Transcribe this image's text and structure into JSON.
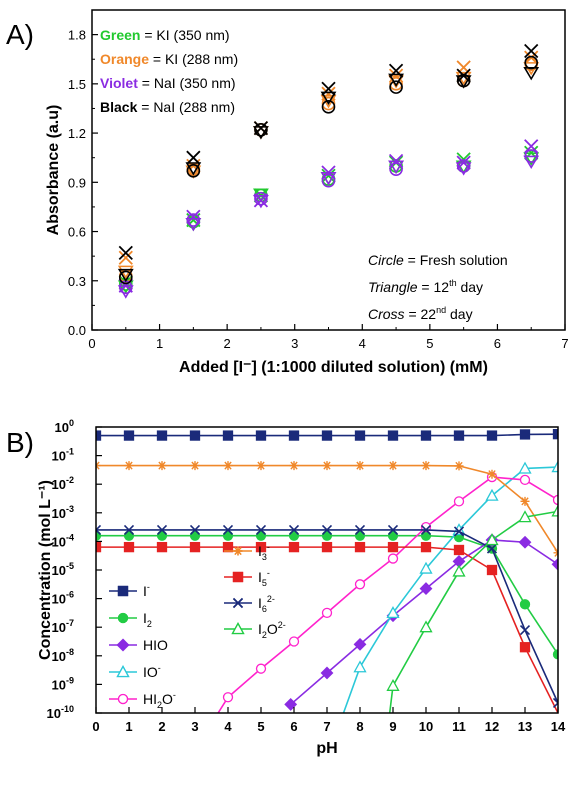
{
  "chart_data": [
    {
      "panel": "A)",
      "type": "scatter",
      "xlabel": "Added [I⁻] (1:1000 diluted solution) (mM)",
      "ylabel": "Absorbance (a.u)",
      "xlim": [
        0,
        7
      ],
      "ylim": [
        0,
        1.95
      ],
      "xticks": [
        "0",
        "1",
        "2",
        "3",
        "4",
        "5",
        "6",
        "7"
      ],
      "yticks": [
        "0.0",
        "0.3",
        "0.6",
        "0.9",
        "1.2",
        "1.5",
        "1.8"
      ],
      "color_legend": [
        {
          "color_word": "Green",
          "text": "= KI (350 nm)",
          "color": "#22c92f"
        },
        {
          "color_word": "Orange",
          "text": "= KI (288 nm)",
          "color": "#f0882a"
        },
        {
          "color_word": "Violet",
          "text": "= NaI (350 nm)",
          "color": "#8a2be2"
        },
        {
          "color_word": "Black",
          "text": "= NaI (288 nm)",
          "color": "#000000"
        }
      ],
      "marker_legend": [
        {
          "shape": "Circle",
          "text": "= Fresh solution"
        },
        {
          "shape": "Triangle",
          "text": "= 12",
          "sup": "th",
          "tail": "day"
        },
        {
          "shape": "Cross",
          "text": "= 22",
          "sup": "nd",
          "tail": "day"
        }
      ],
      "x": [
        0.5,
        1.5,
        2.5,
        3.5,
        4.5,
        5.5,
        6.5
      ],
      "series": [
        {
          "color": "#22c92f",
          "circle": [
            0.28,
            0.66,
            0.82,
            0.92,
            1.0,
            1.0,
            1.06
          ],
          "triangle": [
            0.27,
            0.65,
            0.83,
            0.93,
            1.0,
            1.0,
            1.05
          ],
          "cross": [
            0.29,
            0.67,
            0.82,
            0.94,
            1.02,
            1.04,
            1.08
          ]
        },
        {
          "color": "#f0882a",
          "circle": [
            0.33,
            0.98,
            1.22,
            1.38,
            1.5,
            1.52,
            1.62
          ],
          "triangle": [
            0.36,
            0.97,
            1.21,
            1.4,
            1.52,
            1.54,
            1.6
          ],
          "cross": [
            0.44,
            1.0,
            1.23,
            1.44,
            1.55,
            1.6,
            1.66
          ]
        },
        {
          "color": "#8a2be2",
          "circle": [
            0.26,
            0.67,
            0.8,
            0.91,
            0.98,
            1.0,
            1.06
          ],
          "triangle": [
            0.24,
            0.65,
            0.79,
            0.93,
            1.0,
            0.99,
            1.03
          ],
          "cross": [
            0.27,
            0.69,
            0.79,
            0.96,
            1.03,
            1.02,
            1.12
          ]
        },
        {
          "color": "#000000",
          "circle": [
            0.32,
            0.97,
            1.22,
            1.36,
            1.48,
            1.52,
            1.63
          ],
          "triangle": [
            0.34,
            0.99,
            1.21,
            1.42,
            1.53,
            1.52,
            1.57
          ],
          "cross": [
            0.47,
            1.05,
            1.23,
            1.47,
            1.58,
            1.55,
            1.7
          ]
        }
      ]
    },
    {
      "panel": "B)",
      "type": "line",
      "xlabel": "pH",
      "ylabel": "Concentration (mol L⁻¹)",
      "xlim": [
        0,
        14
      ],
      "ylim_log10": [
        -10,
        0
      ],
      "xticks": [
        "0",
        "1",
        "2",
        "3",
        "4",
        "5",
        "6",
        "7",
        "8",
        "9",
        "10",
        "11",
        "12",
        "13",
        "14"
      ],
      "ytick_exps": [
        "0",
        "-1",
        "-2",
        "-3",
        "-4",
        "-5",
        "-6",
        "-7",
        "-8",
        "-9",
        "-10"
      ],
      "series": [
        {
          "label": "I",
          "sup": "-",
          "sub": "",
          "color": "#1a2a7a",
          "marker": "square",
          "filled": true,
          "x": [
            0,
            1,
            2,
            3,
            4,
            5,
            6,
            7,
            8,
            9,
            10,
            11,
            12,
            13,
            14
          ],
          "log10y": [
            -0.3,
            -0.3,
            -0.3,
            -0.3,
            -0.3,
            -0.3,
            -0.3,
            -0.3,
            -0.3,
            -0.3,
            -0.3,
            -0.3,
            -0.3,
            -0.26,
            -0.25
          ]
        },
        {
          "label": "I",
          "sup": "",
          "sub": "2",
          "color": "#22cc44",
          "marker": "circle",
          "filled": true,
          "x": [
            0,
            1,
            2,
            3,
            4,
            5,
            6,
            7,
            8,
            9,
            10,
            11,
            12,
            13,
            14
          ],
          "log10y": [
            -3.8,
            -3.8,
            -3.8,
            -3.8,
            -3.8,
            -3.8,
            -3.8,
            -3.8,
            -3.8,
            -3.8,
            -3.8,
            -3.85,
            -4.25,
            -6.2,
            -7.95
          ]
        },
        {
          "label": "HIO",
          "sup": "",
          "sub": "",
          "color": "#8a2be2",
          "marker": "diamond",
          "filled": true,
          "x": [
            5.9,
            7,
            8,
            9,
            10,
            11,
            12,
            13,
            14
          ],
          "log10y": [
            -9.7,
            -8.6,
            -7.6,
            -6.6,
            -5.65,
            -4.7,
            -3.95,
            -4.03,
            -4.8
          ]
        },
        {
          "label": "IO",
          "sup": "-",
          "sub": "",
          "color": "#2bc8d8",
          "marker": "triangle",
          "filled": false,
          "x": [
            7.5,
            8,
            9,
            10,
            11,
            12,
            13,
            14
          ],
          "log10y": [
            -10,
            -8.4,
            -6.5,
            -4.95,
            -3.6,
            -2.4,
            -1.45,
            -1.4
          ]
        },
        {
          "label": "HI",
          "sup": "-",
          "sub": "2",
          "mid": "O",
          "color": "#ff22cc",
          "marker": "circle",
          "filled": false,
          "x": [
            3.7,
            4,
            5,
            6,
            7,
            8,
            9,
            10,
            11,
            12,
            13,
            14
          ],
          "log10y": [
            -10,
            -9.45,
            -8.45,
            -7.5,
            -6.5,
            -5.5,
            -4.6,
            -3.5,
            -2.6,
            -1.75,
            -1.85,
            -2.55
          ]
        },
        {
          "label": "I",
          "sup": "-",
          "sub": "3",
          "color": "#f0882a",
          "marker": "star",
          "filled": false,
          "x": [
            0,
            1,
            2,
            3,
            4,
            5,
            6,
            7,
            8,
            9,
            10,
            11,
            12,
            13,
            14
          ],
          "log10y": [
            -1.35,
            -1.35,
            -1.35,
            -1.35,
            -1.35,
            -1.35,
            -1.35,
            -1.35,
            -1.35,
            -1.35,
            -1.35,
            -1.36,
            -1.65,
            -2.6,
            -4.4
          ]
        },
        {
          "label": "I",
          "sup": "-",
          "sub": "5",
          "color": "#e52222",
          "marker": "square",
          "filled": true,
          "x": [
            0,
            1,
            2,
            3,
            4,
            5,
            6,
            7,
            8,
            9,
            10,
            11,
            12,
            13,
            14
          ],
          "log10y": [
            -4.2,
            -4.2,
            -4.2,
            -4.2,
            -4.2,
            -4.2,
            -4.2,
            -4.2,
            -4.2,
            -4.2,
            -4.2,
            -4.3,
            -5.0,
            -7.7,
            -10
          ]
        },
        {
          "label": "I",
          "sup": "2-",
          "sub": "6",
          "color": "#1a2a7a",
          "marker": "x",
          "filled": false,
          "x": [
            0,
            1,
            2,
            3,
            4,
            5,
            6,
            7,
            8,
            9,
            10,
            11,
            12,
            13,
            14
          ],
          "log10y": [
            -3.6,
            -3.6,
            -3.6,
            -3.6,
            -3.6,
            -3.6,
            -3.6,
            -3.6,
            -3.6,
            -3.6,
            -3.6,
            -3.65,
            -4.25,
            -7.1,
            -9.65
          ]
        },
        {
          "label": "I",
          "sup": "2-",
          "sub": "2",
          "mid": "O",
          "color": "#22cc44",
          "marker": "triangle",
          "filled": false,
          "x": [
            8.9,
            9,
            10,
            11,
            12,
            13,
            14
          ],
          "log10y": [
            -10,
            -9.05,
            -7.0,
            -5.05,
            -3.95,
            -3.15,
            -2.95
          ]
        }
      ]
    }
  ]
}
